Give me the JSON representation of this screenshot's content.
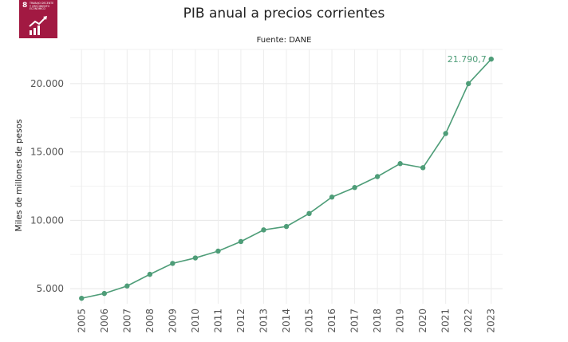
{
  "badge": {
    "number": "8",
    "text": "TRABAJO DECENTE Y CRECIMIENTO ECONÓMICO",
    "icon": "growth-chart-icon",
    "color": "#A21942"
  },
  "chart_data": {
    "type": "line",
    "title": "PIB anual a precios corrientes",
    "subtitle": "Fuente: DANE",
    "xlabel": "",
    "ylabel": "Miles de millones de pesos",
    "x": [
      "2005",
      "2006",
      "2007",
      "2008",
      "2009",
      "2010",
      "2011",
      "2012",
      "2013",
      "2014",
      "2015",
      "2016",
      "2017",
      "2018",
      "2019",
      "2020",
      "2021",
      "2022",
      "2023"
    ],
    "series": [
      {
        "values": [
          4300,
          4650,
          5200,
          6050,
          6850,
          7250,
          7750,
          8450,
          9300,
          9550,
          10500,
          11700,
          12400,
          13200,
          14150,
          13850,
          16350,
          20000,
          21790.7
        ],
        "color": "#4E9D78"
      }
    ],
    "yticks": [
      "5.000",
      "10.000",
      "15.000",
      "20.000"
    ],
    "ytick_values": [
      5000,
      10000,
      15000,
      20000
    ],
    "ylim": [
      3900,
      22500
    ],
    "grid": true,
    "annotation": {
      "x": "2023",
      "text": "21.790,7",
      "color": "#4E9D78"
    }
  }
}
